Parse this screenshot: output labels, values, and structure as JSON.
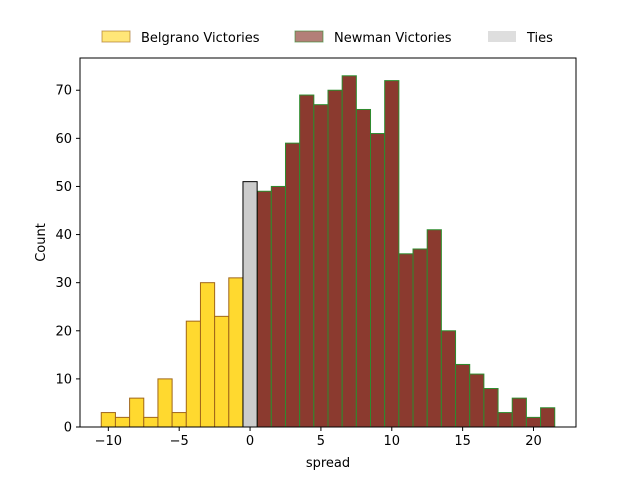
{
  "chart_data": {
    "type": "bar",
    "title": "",
    "xlabel": "spread",
    "ylabel": "Count",
    "xlim": [
      -12,
      23
    ],
    "ylim": [
      0,
      76.7
    ],
    "xticks": [
      -10,
      -5,
      0,
      5,
      10,
      15,
      20
    ],
    "yticks": [
      0,
      10,
      20,
      30,
      40,
      50,
      60,
      70
    ],
    "grid": false,
    "legend_position": "top-center",
    "bin_width": 1,
    "series": [
      {
        "name": "Belgrano Victories",
        "fill": "#ffd92f",
        "edge": "#a0661a",
        "bins": [
          {
            "x": -10,
            "count": 3
          },
          {
            "x": -9,
            "count": 2
          },
          {
            "x": -8,
            "count": 6
          },
          {
            "x": -7,
            "count": 2
          },
          {
            "x": -6,
            "count": 10
          },
          {
            "x": -5,
            "count": 3
          },
          {
            "x": -4,
            "count": 22
          },
          {
            "x": -3,
            "count": 30
          },
          {
            "x": -2,
            "count": 23
          },
          {
            "x": -1,
            "count": 31
          }
        ]
      },
      {
        "name": "Newman Victories",
        "fill": "#8b3a2f",
        "edge": "#2e8b2e",
        "bins": [
          {
            "x": 1,
            "count": 49
          },
          {
            "x": 2,
            "count": 50
          },
          {
            "x": 3,
            "count": 59
          },
          {
            "x": 4,
            "count": 69
          },
          {
            "x": 5,
            "count": 67
          },
          {
            "x": 6,
            "count": 70
          },
          {
            "x": 7,
            "count": 73
          },
          {
            "x": 8,
            "count": 66
          },
          {
            "x": 9,
            "count": 61
          },
          {
            "x": 10,
            "count": 72
          },
          {
            "x": 11,
            "count": 36
          },
          {
            "x": 12,
            "count": 37
          },
          {
            "x": 13,
            "count": 41
          },
          {
            "x": 14,
            "count": 20
          },
          {
            "x": 15,
            "count": 13
          },
          {
            "x": 16,
            "count": 11
          },
          {
            "x": 17,
            "count": 8
          },
          {
            "x": 18,
            "count": 3
          },
          {
            "x": 19,
            "count": 6
          },
          {
            "x": 20,
            "count": 2
          },
          {
            "x": 21,
            "count": 4
          }
        ]
      },
      {
        "name": "Ties",
        "fill": "#cccccc",
        "edge": "#000000",
        "bins": [
          {
            "x": 0,
            "count": 51
          }
        ]
      }
    ]
  }
}
